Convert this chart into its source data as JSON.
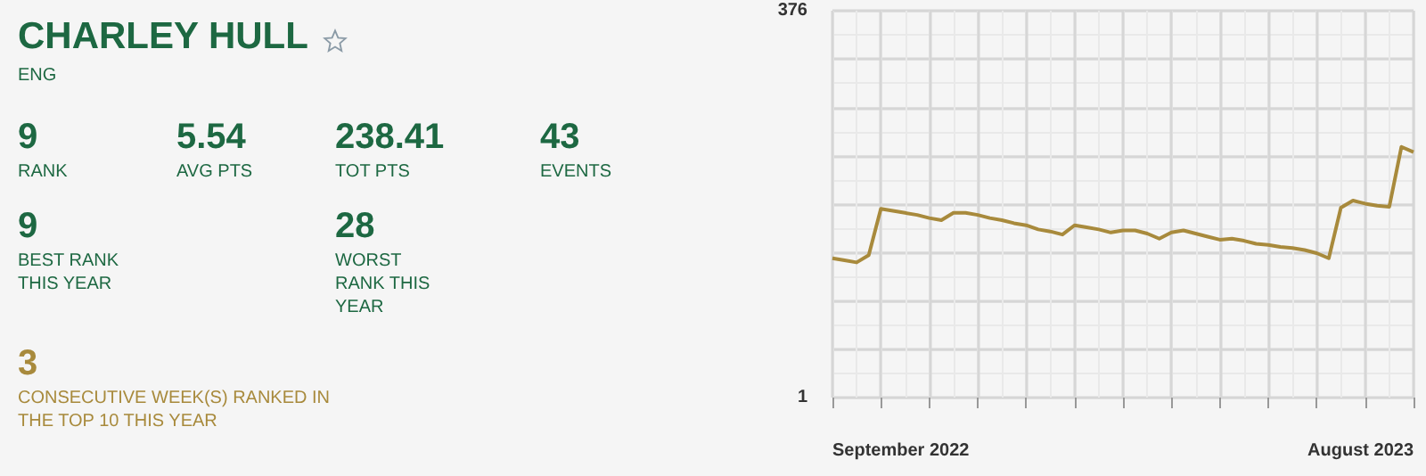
{
  "chart_data": [
    {
      "type": "other",
      "title": "CHARLEY HULL",
      "subtitle": "ENG",
      "annotations": [
        "9",
        "RANK",
        "5.54",
        "AVG PTS",
        "238.41",
        "TOT PTS",
        "43",
        "EVENTS",
        "9",
        "BEST RANK THIS YEAR",
        "28",
        "WORST RANK THIS YEAR",
        "3",
        "CONSECUTIVE WEEK(S) RANKED IN THE TOP 10 THIS YEAR"
      ]
    },
    {
      "type": "line",
      "annotations": [
        "September 2022",
        "August 2023"
      ],
      "categories": [
        null,
        null,
        null,
        null,
        null,
        null,
        null,
        null,
        null,
        null,
        null,
        null,
        null,
        null,
        null,
        null,
        null,
        null,
        null,
        null,
        null,
        null,
        null,
        null,
        null,
        null,
        null,
        null,
        null,
        null,
        null,
        null,
        null,
        null,
        null,
        null,
        null,
        null,
        null,
        null,
        null,
        null,
        null,
        null,
        null,
        null,
        null,
        null,
        null
      ],
      "series": [
        {
          "color": "#a88a3c",
          "values": [
            136,
            134,
            132,
            139,
            184,
            182,
            180,
            178,
            175,
            173,
            180,
            180,
            178,
            175,
            173,
            170,
            168,
            164,
            162,
            159,
            168,
            166,
            164,
            161,
            163,
            163,
            160,
            155,
            161,
            163,
            160,
            157,
            154,
            155,
            153,
            150,
            149,
            147,
            146,
            144,
            141,
            136,
            185,
            192,
            189,
            187,
            186,
            244,
            239
          ]
        }
      ],
      "ylim": [
        1,
        376
      ],
      "yticks": [
        1,
        376
      ],
      "grid": true,
      "marker": "none"
    }
  ]
}
